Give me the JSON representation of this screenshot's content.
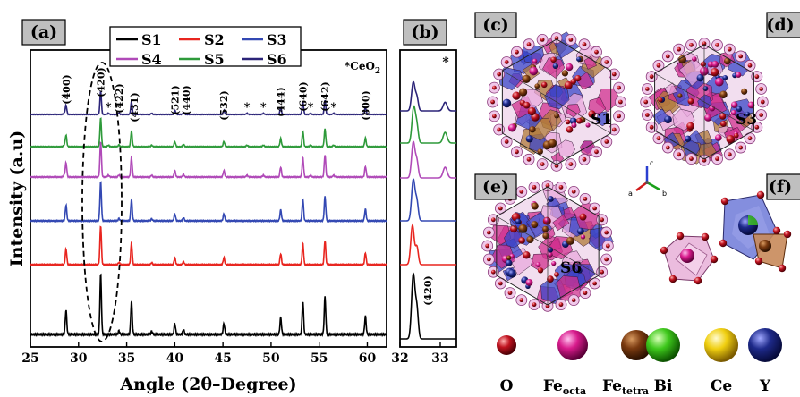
{
  "panels": {
    "a": "(a)",
    "b": "(b)",
    "c": "(c)",
    "d": "(d)",
    "e": "(e)",
    "f": "(f)"
  },
  "xlabel": "Angle (2θ–Degree)",
  "ylabel": "Intensity (a.u)",
  "ceo2_marker": "*CeO",
  "ceo2_sub": "2",
  "structure_labels": {
    "c": "S1",
    "d": "S3",
    "e": "S6"
  },
  "axes_triad": {
    "c": "c",
    "a": "a",
    "b": "b"
  },
  "atom_key": [
    {
      "label": "O",
      "sub": "",
      "color": "#c0121f"
    },
    {
      "label": "Fe",
      "sub": "octa",
      "color": "#d81b8c"
    },
    {
      "label": "Fe",
      "sub": "tetra",
      "color": "#7a3a10"
    },
    {
      "label": "Bi",
      "sub": "",
      "color": "#3ec81c"
    },
    {
      "label": "Ce",
      "sub": "",
      "color": "#f0cf10"
    },
    {
      "label": "Y",
      "sub": "",
      "color": "#1e2a8a"
    }
  ],
  "colors": {
    "S1": "#000000",
    "S2": "#e8251f",
    "S3": "#3348b3",
    "S4": "#b04ab8",
    "S5": "#2e9a3a",
    "S6": "#2b2478",
    "tag_bg": "#bfbfbf"
  },
  "chart_data": [
    {
      "type": "line",
      "panel": "a",
      "xlabel": "Angle (2θ–Degree)",
      "ylabel": "Intensity (a.u)",
      "xlim": [
        25,
        62
      ],
      "xticks": [
        25,
        30,
        35,
        40,
        45,
        50,
        55,
        60
      ],
      "legend_placement": "top-center",
      "series": [
        {
          "name": "S1",
          "color": "#000000"
        },
        {
          "name": "S2",
          "color": "#e8251f"
        },
        {
          "name": "S3",
          "color": "#3348b3"
        },
        {
          "name": "S4",
          "color": "#b04ab8"
        },
        {
          "name": "S5",
          "color": "#2e9a3a"
        },
        {
          "name": "S6",
          "color": "#2b2478"
        }
      ],
      "peaks": [
        {
          "x": 28.7,
          "label": "(400)",
          "h": 0.4
        },
        {
          "x": 32.3,
          "label": "(420)",
          "h": 1.0
        },
        {
          "x": 34.2,
          "label": "(422)",
          "h": 0.06
        },
        {
          "x": 35.5,
          "label": "(431)",
          "h": 0.55
        },
        {
          "x": 37.6,
          "label": "",
          "h": 0.05
        },
        {
          "x": 40.0,
          "label": "(521)",
          "h": 0.18
        },
        {
          "x": 40.9,
          "label": "(440)",
          "h": 0.08
        },
        {
          "x": 45.1,
          "label": "(532)",
          "h": 0.18
        },
        {
          "x": 51.0,
          "label": "(444)",
          "h": 0.28
        },
        {
          "x": 53.3,
          "label": "(640)",
          "h": 0.55
        },
        {
          "x": 55.6,
          "label": "(642)",
          "h": 0.62
        },
        {
          "x": 59.8,
          "label": "(800)",
          "h": 0.3
        }
      ],
      "ceo2_peaks": [
        28.5,
        33.1,
        47.5,
        49.2,
        54.1,
        56.5
      ],
      "annotation": "*CeO2"
    },
    {
      "type": "line",
      "panel": "b",
      "xlim": [
        32,
        33.4
      ],
      "xticks": [
        32,
        33
      ],
      "peak_label": "(420)",
      "marker": "*"
    }
  ]
}
